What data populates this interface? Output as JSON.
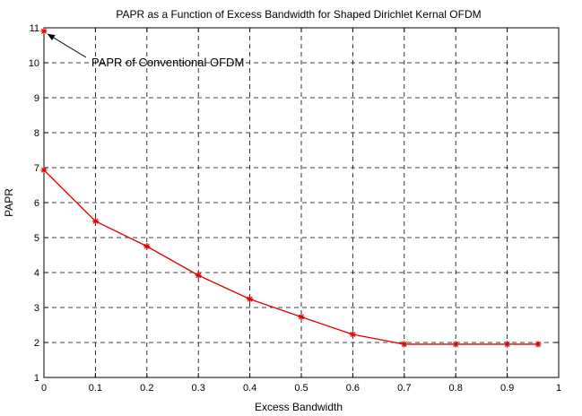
{
  "chart_data": {
    "type": "line",
    "title": "PAPR as a Function of Excess Bandwidth for Shaped Dirichlet Kernal OFDM",
    "xlabel": "Excess Bandwidth",
    "ylabel": "PAPR",
    "xlim": [
      0,
      1
    ],
    "ylim": [
      1,
      11
    ],
    "grid": true,
    "xticks": [
      "0",
      "0.1",
      "0.2",
      "0.3",
      "0.4",
      "0.5",
      "0.6",
      "0.7",
      "0.8",
      "0.9",
      "1"
    ],
    "yticks": [
      "1",
      "2",
      "3",
      "4",
      "5",
      "6",
      "7",
      "8",
      "9",
      "10",
      "11"
    ],
    "series": [
      {
        "color": "#e00000",
        "marker": "asterisk",
        "x": [
          0,
          0.1,
          0.2,
          0.3,
          0.4,
          0.5,
          0.6,
          0.7,
          0.8,
          0.9,
          0.96
        ],
        "values": [
          6.93,
          5.47,
          4.75,
          3.92,
          3.24,
          2.73,
          2.23,
          1.95,
          1.95,
          1.95,
          1.95
        ]
      }
    ],
    "extra_points": [
      {
        "x": 0,
        "y": 10.9,
        "color": "#e00000",
        "marker": "asterisk"
      }
    ],
    "annotations": [
      {
        "text": "PAPR of Conventional OFDM",
        "target_x": 0,
        "target_y": 10.9
      }
    ]
  }
}
